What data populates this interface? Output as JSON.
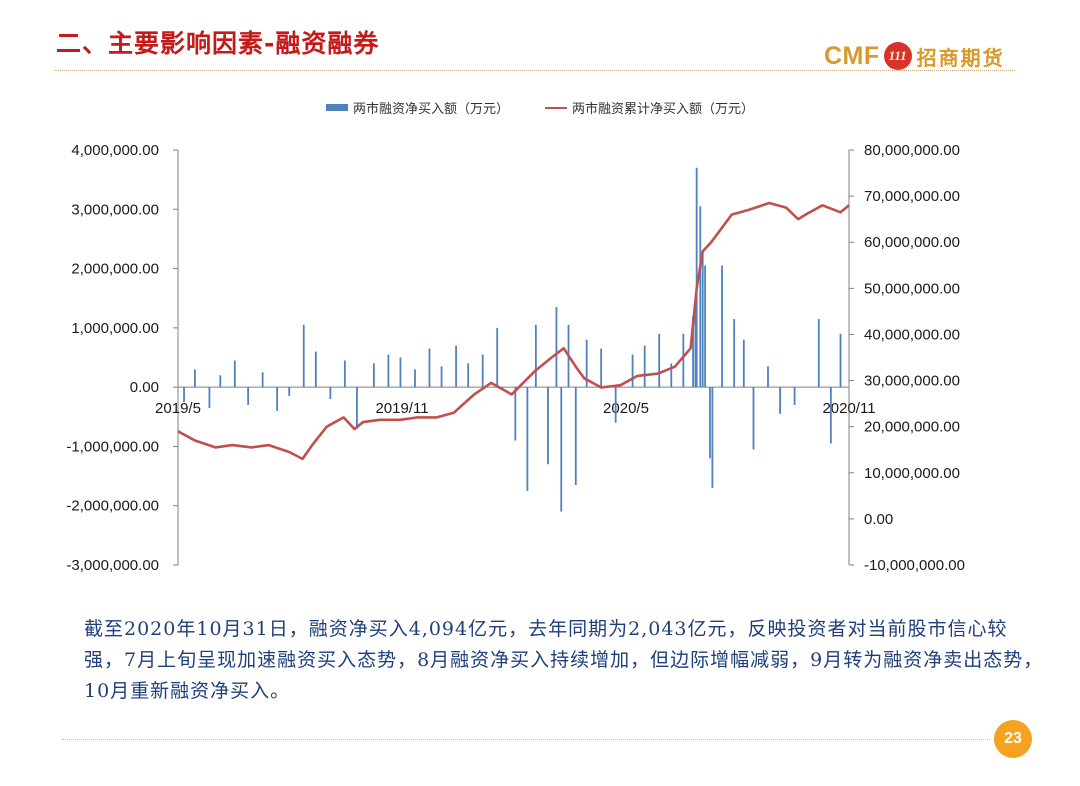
{
  "slide": {
    "title": "二、主要影响因素-融资融券",
    "logo_cmf": "CMF",
    "logo_mark": "111",
    "logo_cn": "招商期货",
    "page_number": "23",
    "body_text": "截至2020年10月31日，融资净买入4,094亿元，去年同期为2,043亿元，反映投资者对当前股市信心较强，7月上旬呈现加速融资买入态势，8月融资净买入持续增加，但边际增幅减弱，9月转为融资净卖出态势，10月重新融资净买入。"
  },
  "colors": {
    "title": "#c41a1a",
    "bar_series": "#4f81bd",
    "line_series": "#c0504d",
    "body_text": "#1f3f7a",
    "page_badge": "#f4a21f"
  },
  "chart_data": {
    "type": "bar+line",
    "title": "",
    "legend_position": "top-center",
    "grid": false,
    "x_tick_labels": [
      "2019/5",
      "2019/11",
      "2020/5",
      "2020/11"
    ],
    "x_range": [
      "2019-05-01",
      "2020-11-06"
    ],
    "left_axis": {
      "ylim": [
        -3000000,
        4000000
      ],
      "tick_values": [
        4000000,
        3000000,
        2000000,
        1000000,
        0,
        -1000000,
        -2000000,
        -3000000
      ],
      "tick_labels": [
        "4,000,000.00",
        "3,000,000.00",
        "2,000,000.00",
        "1,000,000.00",
        "0.00",
        "-1,000,000.00",
        "-2,000,000.00",
        "-3,000,000.00"
      ]
    },
    "right_axis": {
      "ylim": [
        -10000000,
        80000000
      ],
      "tick_values": [
        80000000,
        70000000,
        60000000,
        50000000,
        40000000,
        30000000,
        20000000,
        10000000,
        0,
        -10000000
      ],
      "tick_labels": [
        "80,000,000.00",
        "70,000,000.00",
        "60,000,000.00",
        "50,000,000.00",
        "40,000,000.00",
        "30,000,000.00",
        "20,000,000.00",
        "10,000,000.00",
        "0.00",
        "-10,000,000.00"
      ]
    },
    "series": [
      {
        "name": "两市融资净买入额（万元）",
        "type": "bar",
        "axis": "left",
        "note_points": "approximate daily values read from chart",
        "x": [
          "2019-05-06",
          "2019-05-15",
          "2019-05-27",
          "2019-06-05",
          "2019-06-17",
          "2019-06-28",
          "2019-07-10",
          "2019-07-22",
          "2019-08-01",
          "2019-08-13",
          "2019-08-23",
          "2019-09-04",
          "2019-09-16",
          "2019-09-26",
          "2019-10-10",
          "2019-10-22",
          "2019-11-01",
          "2019-11-13",
          "2019-11-25",
          "2019-12-05",
          "2019-12-17",
          "2019-12-27",
          "2020-01-08",
          "2020-01-20",
          "2020-02-04",
          "2020-02-14",
          "2020-02-21",
          "2020-03-02",
          "2020-03-09",
          "2020-03-13",
          "2020-03-19",
          "2020-03-25",
          "2020-04-03",
          "2020-04-15",
          "2020-04-27",
          "2020-05-11",
          "2020-05-21",
          "2020-06-02",
          "2020-06-12",
          "2020-06-22",
          "2020-06-30",
          "2020-07-02",
          "2020-07-03",
          "2020-07-06",
          "2020-07-08",
          "2020-07-10",
          "2020-07-14",
          "2020-07-16",
          "2020-07-24",
          "2020-08-03",
          "2020-08-11",
          "2020-08-19",
          "2020-08-31",
          "2020-09-10",
          "2020-09-22",
          "2020-10-12",
          "2020-10-22",
          "2020-10-30"
        ],
        "values": [
          -250000,
          300000,
          -350000,
          200000,
          450000,
          -300000,
          250000,
          -400000,
          -150000,
          1050000,
          600000,
          -200000,
          450000,
          -700000,
          400000,
          550000,
          500000,
          300000,
          650000,
          350000,
          700000,
          400000,
          550000,
          1000000,
          -900000,
          -1750000,
          1050000,
          -1300000,
          1350000,
          -2100000,
          1050000,
          -1650000,
          800000,
          650000,
          -600000,
          550000,
          700000,
          900000,
          400000,
          900000,
          1200000,
          1400000,
          3700000,
          3050000,
          2300000,
          2050000,
          -1200000,
          -1700000,
          2050000,
          1150000,
          800000,
          -1050000,
          350000,
          -450000,
          -300000,
          1150000,
          -950000,
          900000
        ]
      },
      {
        "name": "两市融资累计净买入额（万元）",
        "type": "line",
        "axis": "right",
        "x": [
          "2019-05-01",
          "2019-05-15",
          "2019-06-01",
          "2019-06-15",
          "2019-07-01",
          "2019-07-15",
          "2019-08-01",
          "2019-08-12",
          "2019-08-20",
          "2019-09-01",
          "2019-09-15",
          "2019-09-24",
          "2019-10-01",
          "2019-10-15",
          "2019-11-01",
          "2019-11-15",
          "2019-12-01",
          "2019-12-15",
          "2020-01-01",
          "2020-01-15",
          "2020-02-01",
          "2020-02-20",
          "2020-03-05",
          "2020-03-15",
          "2020-03-25",
          "2020-04-01",
          "2020-04-15",
          "2020-05-01",
          "2020-05-15",
          "2020-06-01",
          "2020-06-15",
          "2020-06-28",
          "2020-07-03",
          "2020-07-08",
          "2020-07-15",
          "2020-08-01",
          "2020-08-15",
          "2020-09-01",
          "2020-09-15",
          "2020-09-25",
          "2020-10-01",
          "2020-10-15",
          "2020-10-30",
          "2020-11-06"
        ],
        "values": [
          19000000,
          17000000,
          15500000,
          16000000,
          15500000,
          16000000,
          14500000,
          13000000,
          16000000,
          20000000,
          22000000,
          19500000,
          21000000,
          21500000,
          21500000,
          22000000,
          22000000,
          23000000,
          27000000,
          29500000,
          27000000,
          32000000,
          35000000,
          37000000,
          33000000,
          30500000,
          28500000,
          29000000,
          31000000,
          31500000,
          33000000,
          37000000,
          50000000,
          58000000,
          60000000,
          66000000,
          67000000,
          68500000,
          67500000,
          65000000,
          66000000,
          68000000,
          66500000,
          68000000
        ]
      }
    ]
  }
}
